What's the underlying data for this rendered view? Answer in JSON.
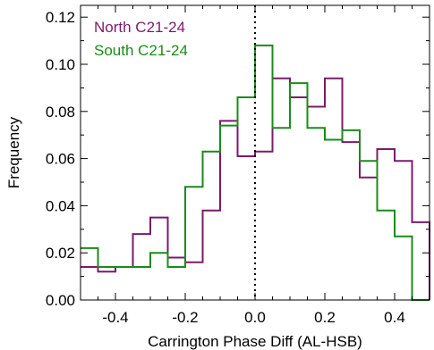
{
  "chart_data": {
    "type": "histogram",
    "title": "",
    "xlabel": "Carrington Phase Diff (AL-HSB)",
    "ylabel": "Frequency",
    "xlim": [
      -0.5,
      0.5
    ],
    "ylim": [
      0.0,
      0.125
    ],
    "xticks": [
      -0.4,
      -0.2,
      0.0,
      0.2,
      0.4
    ],
    "xtick_labels": [
      "-0.4",
      "-0.2",
      "0.0",
      "0.2",
      "0.4"
    ],
    "yticks": [
      0.0,
      0.02,
      0.04,
      0.06,
      0.08,
      0.1,
      0.12
    ],
    "ytick_labels": [
      "0.00",
      "0.02",
      "0.04",
      "0.06",
      "0.08",
      "0.10",
      "0.12"
    ],
    "bin_edges": [
      -0.5,
      -0.45,
      -0.4,
      -0.35,
      -0.3,
      -0.25,
      -0.2,
      -0.15,
      -0.1,
      -0.05,
      0.0,
      0.05,
      0.1,
      0.15,
      0.2,
      0.25,
      0.3,
      0.35,
      0.4,
      0.45,
      0.5
    ],
    "series": [
      {
        "name": "North C21-24",
        "color": "#7b1b6a",
        "values": [
          0.014,
          0.012,
          0.014,
          0.028,
          0.035,
          0.018,
          0.016,
          0.038,
          0.076,
          0.061,
          0.063,
          0.094,
          0.086,
          0.082,
          0.094,
          0.067,
          0.052,
          0.064,
          0.059,
          0.033
        ]
      },
      {
        "name": "South C21-24",
        "color": "#1a8c1a",
        "values": [
          0.022,
          0.014,
          0.014,
          0.014,
          0.02,
          0.014,
          0.048,
          0.063,
          0.074,
          0.086,
          0.108,
          0.073,
          0.092,
          0.073,
          0.068,
          0.072,
          0.059,
          0.038,
          0.027,
          0.0
        ]
      }
    ],
    "reference_lines": [
      {
        "axis": "x",
        "value": 0.0,
        "style": "dotted",
        "color": "#000000"
      }
    ],
    "legend_position": "top-left",
    "grid": false
  }
}
